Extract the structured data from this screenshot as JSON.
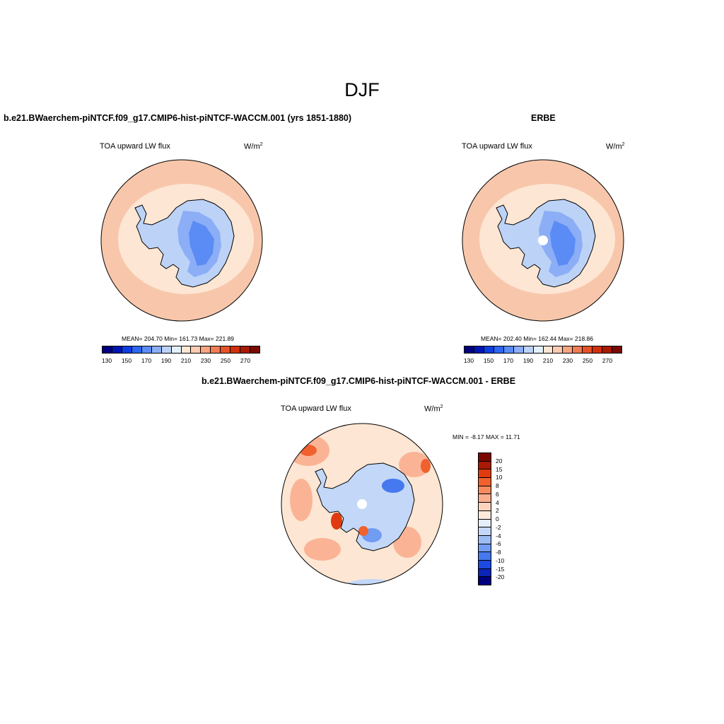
{
  "main_title": "DJF",
  "chart_data": [
    {
      "type": "heatmap",
      "projection": "south-polar-stereographic",
      "title": "b.e21.BWaerchem-piNTCF.f09_g17.CMIP6-hist-piNTCF-WACCM.001 (yrs 1851-1880)",
      "variable": "TOA upward LW flux",
      "units_base": "W/m",
      "units_exp": "2",
      "stats": "MEAN= 204.70  Min= 161.73  Max= 221.89",
      "colorbar": {
        "orientation": "horizontal",
        "levels": [
          140,
          150,
          160,
          170,
          180,
          190,
          200,
          210,
          220,
          230,
          240,
          250,
          260
        ],
        "labels": [
          "130",
          "150",
          "170",
          "190",
          "210",
          "230",
          "250",
          "270"
        ]
      }
    },
    {
      "type": "heatmap",
      "projection": "south-polar-stereographic",
      "title": "ERBE",
      "variable": "TOA upward LW flux",
      "units_base": "W/m",
      "units_exp": "2",
      "stats": "MEAN= 202.40  Min= 162.44  Max= 218.86",
      "colorbar": {
        "orientation": "horizontal",
        "levels": [
          140,
          150,
          160,
          170,
          180,
          190,
          200,
          210,
          220,
          230,
          240,
          250,
          260
        ],
        "labels": [
          "130",
          "150",
          "170",
          "190",
          "210",
          "230",
          "250",
          "270"
        ]
      }
    },
    {
      "type": "heatmap",
      "projection": "south-polar-stereographic",
      "title": "b.e21.BWaerchem-piNTCF.f09_g17.CMIP6-hist-piNTCF-WACCM.001 - ERBE",
      "variable": "TOA upward LW flux",
      "units_base": "W/m",
      "units_exp": "2",
      "stats": "MIN =  -8.17 MAX =  11.71",
      "colorbar": {
        "orientation": "vertical",
        "levels": [
          20,
          15,
          10,
          8,
          6,
          4,
          2,
          0,
          -2,
          -4,
          -6,
          -8,
          -10,
          -15,
          -20
        ],
        "labels": [
          "20",
          "15",
          "10",
          "8",
          "6",
          "4",
          "2",
          "0",
          "-2",
          "-4",
          "-6",
          "-8",
          "-10",
          "-15",
          "-20"
        ]
      }
    }
  ],
  "palette": {
    "horizontal": [
      "#00007f",
      "#0016b2",
      "#0d3de0",
      "#2c66f2",
      "#5b8bf5",
      "#8caef6",
      "#bcd3f7",
      "#e4f1fb",
      "#fde6d3",
      "#fbcbb2",
      "#f6a482",
      "#f07c55",
      "#e65328",
      "#d2300d",
      "#a91a05",
      "#7a0a01"
    ],
    "vertical_top_down": [
      "#7a0a01",
      "#a91a05",
      "#e03a0e",
      "#f0612e",
      "#f68a5e",
      "#f9ae8e",
      "#fcd4bd",
      "#fdeadb",
      "#e3eefb",
      "#c3d8f8",
      "#9cbcf5",
      "#709cf3",
      "#4678ef",
      "#1c49df",
      "#0b25b8",
      "#00007f"
    ],
    "field_warm": "#f8c7ab",
    "field_light": "#fde6d3",
    "field_blue": "#5b8bf5",
    "field_lightblue": "#bcd3f7"
  }
}
